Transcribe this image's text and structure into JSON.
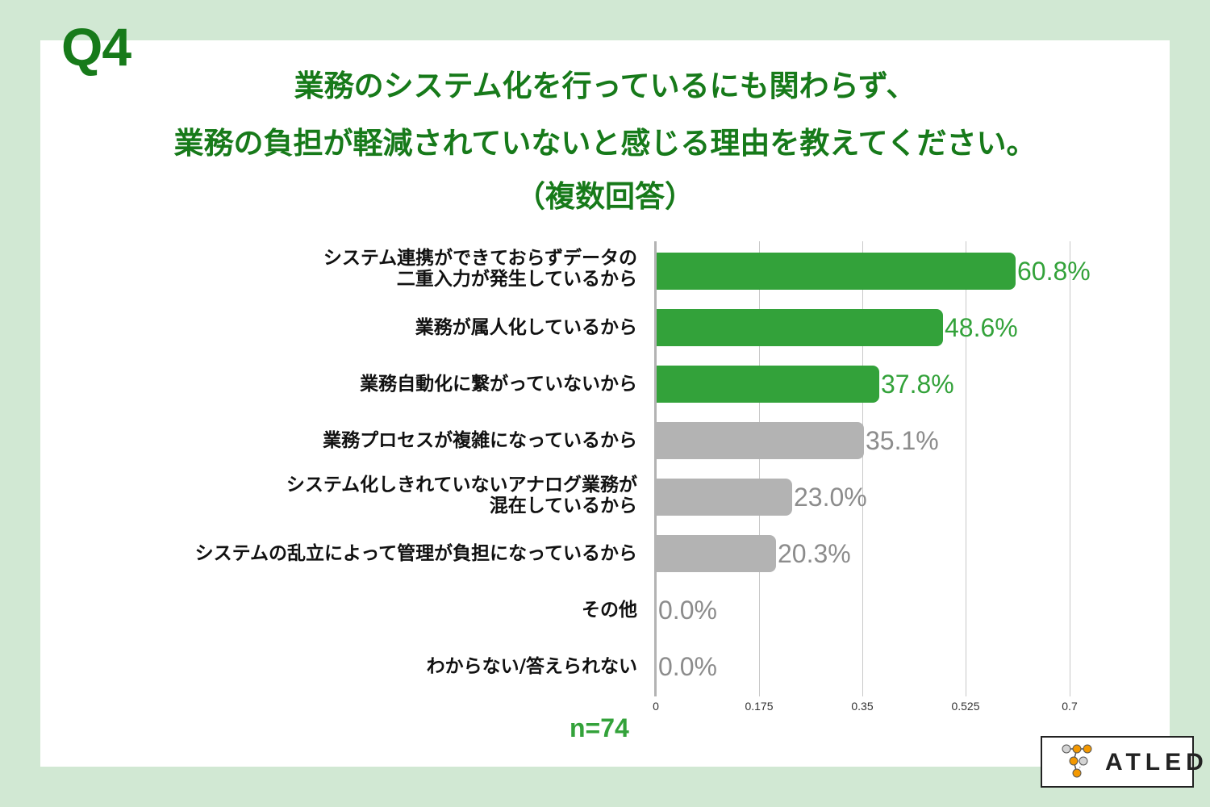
{
  "question_number": "Q4",
  "title": {
    "line1": "業務のシステム化を行っているにも関わらず、",
    "line2": "業務の負担が軽減されていないと感じる理由を教えてください。",
    "line3": "（複数回答）"
  },
  "sample_size": "n=74",
  "logo": {
    "text": "ATLED"
  },
  "colors": {
    "title": "#177a1a",
    "highlight_bar": "#33a23a",
    "highlight_label": "#33a23a",
    "other_bar": "#b3b3b3",
    "other_label": "#8c8c8c",
    "background": "#d1e8d3"
  },
  "chart_data": {
    "type": "bar",
    "orientation": "horizontal",
    "title": "業務のシステム化を行っているにも関わらず、業務の負担が軽減されていないと感じる理由を教えてください。（複数回答）",
    "categories": [
      "システム連携ができておらずデータの二重入力が発生しているから",
      "業務が属人化しているから",
      "業務自動化に繋がっていないから",
      "業務プロセスが複雑になっているから",
      "システム化しきれていないアナログ業務が混在しているから",
      "システムの乱立によって管理が負担になっているから",
      "その他",
      "わからない/答えられない"
    ],
    "values": [
      0.608,
      0.486,
      0.378,
      0.351,
      0.23,
      0.203,
      0.0,
      0.0
    ],
    "value_labels": [
      "60.8%",
      "48.6%",
      "37.8%",
      "35.1%",
      "23.0%",
      "20.3%",
      "0.0%",
      "0.0%"
    ],
    "highlighted": [
      true,
      true,
      true,
      false,
      false,
      false,
      false,
      false
    ],
    "xlabel": "",
    "ylabel": "",
    "xlim": [
      0,
      0.7
    ],
    "x_ticks": [
      "0",
      "0.175",
      "0.35",
      "0.525",
      "0.7"
    ],
    "grid": true,
    "legend": "none",
    "n": 74
  },
  "rows": [
    {
      "label_line1": "システム連携ができておらずデータの",
      "label_line2": "二重入力が発生しているから",
      "value": "60.8%"
    },
    {
      "label_line1": "業務が属人化しているから",
      "label_line2": "",
      "value": "48.6%"
    },
    {
      "label_line1": "業務自動化に繋がっていないから",
      "label_line2": "",
      "value": "37.8%"
    },
    {
      "label_line1": "業務プロセスが複雑になっているから",
      "label_line2": "",
      "value": "35.1%"
    },
    {
      "label_line1": "システム化しきれていないアナログ業務が",
      "label_line2": "混在しているから",
      "value": "23.0%"
    },
    {
      "label_line1": "システムの乱立によって管理が負担になっているから",
      "label_line2": "",
      "value": "20.3%"
    },
    {
      "label_line1": "その他",
      "label_line2": "",
      "value": "0.0%"
    },
    {
      "label_line1": "わからない/答えられない",
      "label_line2": "",
      "value": "0.0%"
    }
  ]
}
